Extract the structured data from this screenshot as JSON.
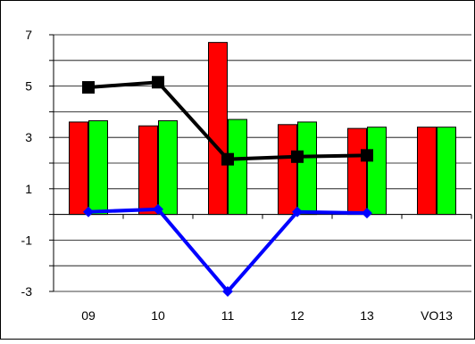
{
  "chart_data": {
    "type": "bar",
    "categories": [
      "09",
      "10",
      "11",
      "12",
      "13",
      "VO13"
    ],
    "ylim": [
      -3,
      7
    ],
    "yticks": [
      -3,
      -1,
      1,
      3,
      5,
      7
    ],
    "grid": true,
    "legend": "none",
    "series": [
      {
        "kind": "bar",
        "color": "#ff0000",
        "values": [
          3.6,
          3.45,
          6.7,
          3.5,
          3.35,
          3.4
        ]
      },
      {
        "kind": "bar",
        "color": "#00ff00",
        "values": [
          3.65,
          3.65,
          3.7,
          3.6,
          3.4,
          3.4
        ]
      },
      {
        "kind": "line",
        "color": "#000000",
        "marker": "square",
        "values": [
          4.95,
          5.15,
          2.15,
          2.25,
          2.3,
          null
        ]
      },
      {
        "kind": "line",
        "color": "#0000ff",
        "marker": "diamond",
        "values": [
          0.1,
          0.2,
          -3.0,
          0.1,
          0.05,
          null
        ]
      }
    ]
  }
}
